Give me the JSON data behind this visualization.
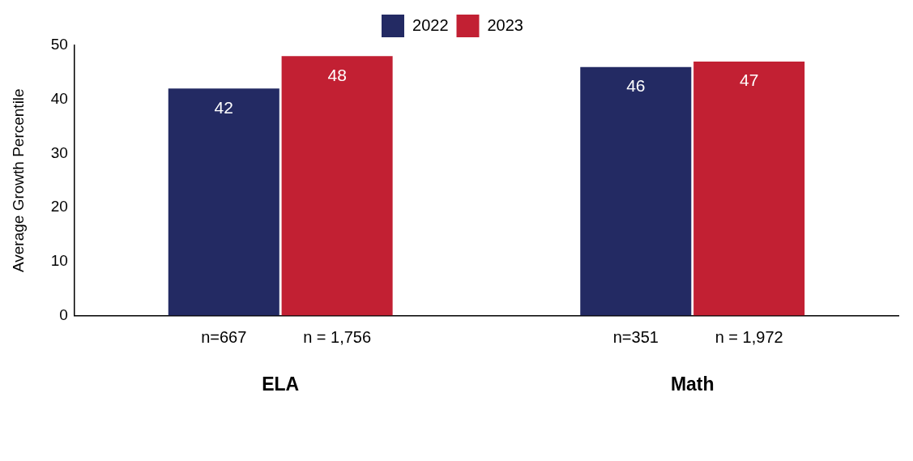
{
  "chart_data": {
    "type": "bar",
    "ylabel": "Average Growth Percentile",
    "categories": [
      "ELA",
      "Math"
    ],
    "series": [
      {
        "name": "2022",
        "color": "#232a63",
        "values": [
          42,
          46
        ]
      },
      {
        "name": "2023",
        "color": "#c22033",
        "values": [
          48,
          47
        ]
      }
    ],
    "ylim": [
      0,
      50
    ],
    "yticks": [
      0,
      10,
      20,
      30,
      40,
      50
    ],
    "grid": false,
    "legend": "top",
    "data_labels": true,
    "annotations": [
      "n=667",
      "n = 1,756",
      "n=351",
      "n = 1,972"
    ]
  }
}
